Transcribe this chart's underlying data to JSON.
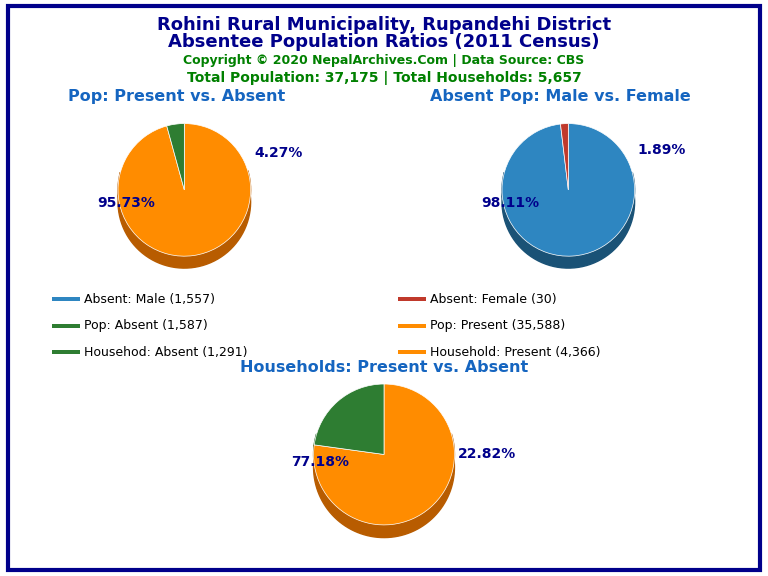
{
  "title_line1": "Rohini Rural Municipality, Rupandehi District",
  "title_line2": "Absentee Population Ratios (2011 Census)",
  "copyright_text": "Copyright © 2020 NepalArchives.Com | Data Source: CBS",
  "stats_text": "Total Population: 37,175 | Total Households: 5,657",
  "title_color": "#00008B",
  "copyright_color": "#008000",
  "stats_color": "#008000",
  "pie1_title": "Pop: Present vs. Absent",
  "pie1_values": [
    35588,
    1587
  ],
  "pie1_colors": [
    "#FF8C00",
    "#2E7D32"
  ],
  "pie1_edge_colors": [
    "#B85C00",
    "#1B5E20"
  ],
  "pie1_labels": [
    "95.73%",
    "4.27%"
  ],
  "pie1_pcts": [
    95.73,
    4.27
  ],
  "pie1_startangle": 90,
  "pie2_title": "Absent Pop: Male vs. Female",
  "pie2_values": [
    1557,
    30
  ],
  "pie2_colors": [
    "#2E86C1",
    "#C0392B"
  ],
  "pie2_edge_colors": [
    "#1A5276",
    "#922B21"
  ],
  "pie2_labels": [
    "98.11%",
    "1.89%"
  ],
  "pie2_pcts": [
    98.11,
    1.89
  ],
  "pie2_startangle": 90,
  "pie3_title": "Households: Present vs. Absent",
  "pie3_values": [
    4366,
    1291
  ],
  "pie3_colors": [
    "#FF8C00",
    "#2E7D32"
  ],
  "pie3_edge_colors": [
    "#B85C00",
    "#1B5E20"
  ],
  "pie3_labels": [
    "77.18%",
    "22.82%"
  ],
  "pie3_pcts": [
    77.18,
    22.82
  ],
  "pie3_startangle": 90,
  "legend_entries": [
    {
      "label": "Absent: Male (1,557)",
      "color": "#2E86C1"
    },
    {
      "label": "Absent: Female (30)",
      "color": "#C0392B"
    },
    {
      "label": "Pop: Absent (1,587)",
      "color": "#2E7D32"
    },
    {
      "label": "Pop: Present (35,588)",
      "color": "#FF8C00"
    },
    {
      "label": "Househod: Absent (1,291)",
      "color": "#2E7D32"
    },
    {
      "label": "Household: Present (4,366)",
      "color": "#FF8C00"
    }
  ],
  "pie_title_color": "#1565C0",
  "label_color": "#00008B",
  "background_color": "#FFFFFF",
  "border_color": "#00008B"
}
